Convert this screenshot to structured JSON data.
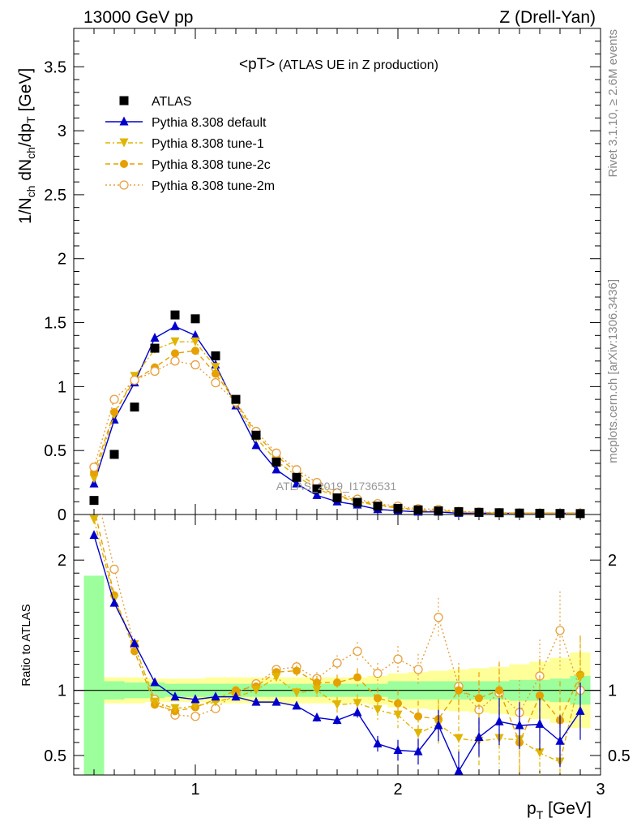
{
  "header": {
    "energy_label": "13000 GeV pp",
    "process_label": "Z (Drell-Yan)",
    "side_label_top": "Rivet 3.1.10, ≥ 2.6M events",
    "side_label_bottom": "mcplots.cern.ch [arXiv:1306.3436]",
    "analysis_title": "<pT>",
    "analysis_subtitle": "(ATLAS UE in Z production)",
    "watermark": "ATLAS_2019_I1736531"
  },
  "colors": {
    "data": "#000000",
    "default": "#0000cc",
    "tune1": "#e0b400",
    "tune2c": "#e6a000",
    "tune2m": "#e6a040",
    "band_inner": "#9cff9c",
    "band_outer": "#ffff99"
  },
  "chart_data": [
    {
      "type": "line",
      "panel": "main",
      "xlabel": "p_T [GeV]",
      "ylabel": "1/N_ch dN_ch/dp_T [GeV]",
      "xlim": [
        0.4,
        3.0
      ],
      "ylim": [
        0,
        3.8
      ],
      "yticks": [
        0,
        0.5,
        1,
        1.5,
        2,
        2.5,
        3,
        3.5
      ],
      "yticklabels": [
        "0",
        "0.5",
        "1",
        "1.5",
        "2",
        "2.5",
        "3",
        "3.5"
      ],
      "legend_position": "top-left",
      "x": [
        0.5,
        0.6,
        0.7,
        0.8,
        0.9,
        1.0,
        1.1,
        1.2,
        1.3,
        1.4,
        1.5,
        1.6,
        1.7,
        1.8,
        1.9,
        2.0,
        2.1,
        2.2,
        2.3,
        2.4,
        2.5,
        2.6,
        2.7,
        2.8,
        2.9
      ],
      "series": [
        {
          "name": "ATLAS",
          "marker": "square",
          "values": [
            0.11,
            0.47,
            0.84,
            1.3,
            1.56,
            1.53,
            1.24,
            0.9,
            0.62,
            0.41,
            0.29,
            0.2,
            0.13,
            0.095,
            0.065,
            0.048,
            0.036,
            0.028,
            0.022,
            0.017,
            0.014,
            0.011,
            0.009,
            0.008,
            0.007
          ]
        },
        {
          "name": "Pythia 8.308 default",
          "marker": "triangle-up",
          "values": [
            0.24,
            0.74,
            1.03,
            1.38,
            1.47,
            1.4,
            1.17,
            0.85,
            0.54,
            0.35,
            0.24,
            0.15,
            0.1,
            0.075,
            0.04,
            0.03,
            0.02,
            0.02,
            0.01,
            0.01,
            0.01,
            0.01,
            0.01,
            0.01,
            0.01
          ]
        },
        {
          "name": "Pythia 8.308 tune-1",
          "marker": "triangle-down",
          "values": [
            0.28,
            0.78,
            1.08,
            1.29,
            1.35,
            1.35,
            1.15,
            0.86,
            0.6,
            0.42,
            0.3,
            0.2,
            0.14,
            0.1,
            0.07,
            0.05,
            0.03,
            0.03,
            0.02,
            0.015,
            0.01,
            0.01,
            0.01,
            0.008,
            0.008
          ]
        },
        {
          "name": "Pythia 8.308 tune-2c",
          "marker": "circle",
          "values": [
            0.33,
            0.8,
            1.05,
            1.15,
            1.26,
            1.28,
            1.1,
            0.88,
            0.63,
            0.46,
            0.33,
            0.22,
            0.15,
            0.11,
            0.075,
            0.055,
            0.035,
            0.03,
            0.02,
            0.015,
            0.012,
            0.01,
            0.01,
            0.01,
            0.01
          ]
        },
        {
          "name": "Pythia 8.308 tune-2m",
          "marker": "open-circle",
          "values": [
            0.37,
            0.9,
            1.05,
            1.12,
            1.2,
            1.17,
            1.03,
            0.88,
            0.65,
            0.48,
            0.35,
            0.25,
            0.17,
            0.12,
            0.085,
            0.065,
            0.045,
            0.04,
            0.025,
            0.02,
            0.015,
            0.012,
            0.01,
            0.01,
            0.01
          ]
        }
      ]
    },
    {
      "type": "line",
      "panel": "ratio",
      "ylabel": "Ratio to ATLAS",
      "xlim": [
        0.4,
        3.0
      ],
      "ylim": [
        0.35,
        2.35
      ],
      "xticks": [
        1,
        2,
        3
      ],
      "xticklabels": [
        "1",
        "2",
        "3"
      ],
      "yticks": [
        0.5,
        1,
        2
      ],
      "yticklabels": [
        "0.5",
        "1",
        "2"
      ],
      "x": [
        0.5,
        0.6,
        0.7,
        0.8,
        0.9,
        1.0,
        1.1,
        1.2,
        1.3,
        1.4,
        1.5,
        1.6,
        1.7,
        1.8,
        1.9,
        2.0,
        2.1,
        2.2,
        2.3,
        2.4,
        2.5,
        2.6,
        2.7,
        2.8,
        2.9
      ],
      "band_inner_half": [
        0.88,
        0.07,
        0.06,
        0.06,
        0.05,
        0.05,
        0.05,
        0.05,
        0.05,
        0.05,
        0.05,
        0.05,
        0.05,
        0.05,
        0.05,
        0.07,
        0.07,
        0.07,
        0.07,
        0.07,
        0.07,
        0.08,
        0.08,
        0.09,
        0.11
      ],
      "band_outer_half": [
        0.3,
        0.1,
        0.1,
        0.09,
        0.09,
        0.09,
        0.1,
        0.1,
        0.1,
        0.1,
        0.1,
        0.1,
        0.1,
        0.1,
        0.11,
        0.13,
        0.14,
        0.15,
        0.16,
        0.17,
        0.18,
        0.2,
        0.22,
        0.25,
        0.29
      ],
      "series": [
        {
          "name": "Pythia 8.308 default",
          "values": [
            2.19,
            1.67,
            1.36,
            1.06,
            0.95,
            0.93,
            0.95,
            0.95,
            0.91,
            0.91,
            0.88,
            0.79,
            0.77,
            0.83,
            0.59,
            0.54,
            0.53,
            0.73,
            0.38,
            0.64,
            0.76,
            0.73,
            0.74,
            0.61,
            0.84
          ],
          "err": [
            0,
            0,
            0,
            0,
            0,
            0,
            0,
            0,
            0,
            0,
            0.02,
            0.03,
            0.03,
            0.04,
            0.06,
            0.08,
            0.1,
            0.12,
            0.15,
            0.15,
            0.18,
            0.18,
            0.2,
            0.2,
            0.22
          ]
        },
        {
          "name": "Pythia 8.308 tune-1",
          "values": [
            2.31,
            1.7,
            1.35,
            0.91,
            0.86,
            0.88,
            0.91,
            0.95,
            1.0,
            1.1,
            0.98,
            1.0,
            0.89,
            0.9,
            0.85,
            0.81,
            0.67,
            0.74,
            0.63,
            0.61,
            0.63,
            0.62,
            0.52,
            0.45,
            1.1
          ],
          "err": [
            0,
            0,
            0,
            0,
            0,
            0,
            0,
            0,
            0.02,
            0.03,
            0.04,
            0.05,
            0.06,
            0.07,
            0.08,
            0.1,
            0.12,
            0.15,
            0.18,
            0.2,
            0.22,
            0.25,
            0.28,
            0.3,
            0.3
          ]
        },
        {
          "name": "Pythia 8.308 tune-2c",
          "values": [
            2.4,
            1.73,
            1.3,
            0.89,
            0.84,
            0.87,
            0.93,
            1.0,
            1.03,
            1.14,
            1.15,
            1.06,
            1.06,
            1.1,
            0.94,
            0.9,
            0.8,
            0.78,
            1.0,
            0.94,
            1.0,
            0.6,
            0.96,
            0.77,
            1.12
          ],
          "err": [
            0,
            0,
            0,
            0,
            0,
            0,
            0,
            0,
            0.02,
            0.03,
            0.04,
            0.05,
            0.06,
            0.07,
            0.08,
            0.1,
            0.12,
            0.15,
            0.18,
            0.2,
            0.22,
            0.25,
            0.28,
            0.3,
            0.3
          ]
        },
        {
          "name": "Pythia 8.308 tune-2m",
          "values": [
            2.6,
            1.93,
            1.34,
            0.93,
            0.81,
            0.8,
            0.86,
            0.98,
            1.05,
            1.16,
            1.18,
            1.09,
            1.21,
            1.3,
            1.13,
            1.24,
            1.16,
            1.56,
            1.03,
            0.85,
            0.98,
            0.83,
            1.11,
            1.46,
            1.0
          ],
          "err": [
            0,
            0,
            0,
            0,
            0,
            0,
            0,
            0,
            0.02,
            0.03,
            0.04,
            0.05,
            0.06,
            0.07,
            0.08,
            0.1,
            0.12,
            0.15,
            0.18,
            0.2,
            0.22,
            0.25,
            0.28,
            0.3,
            0.3
          ]
        }
      ]
    }
  ]
}
